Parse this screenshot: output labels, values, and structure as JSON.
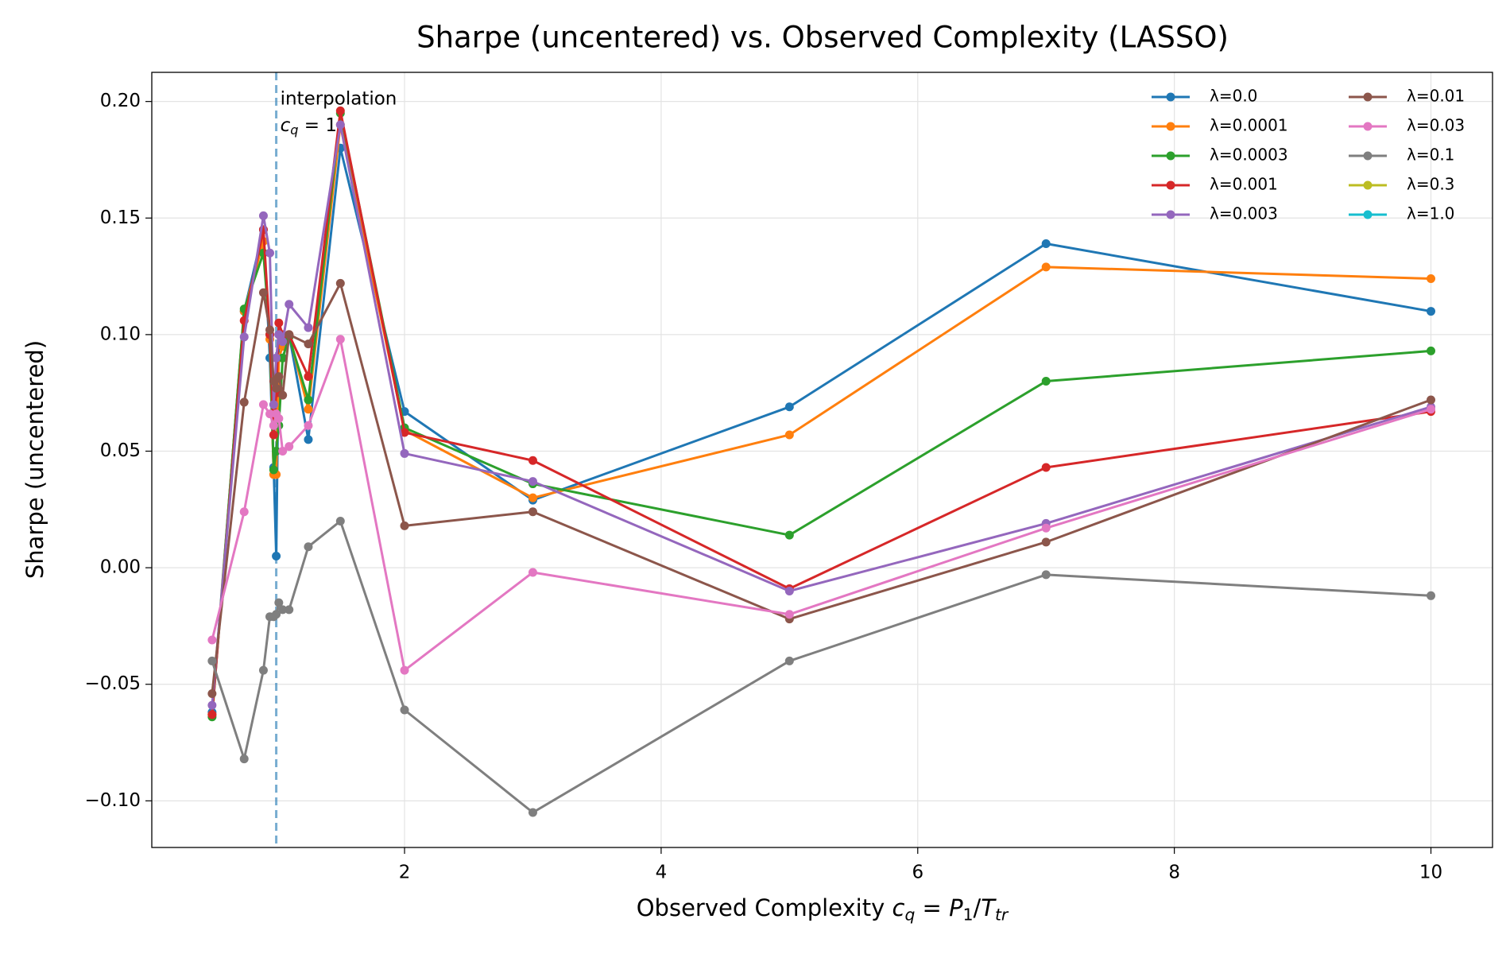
{
  "chart_data": {
    "type": "line",
    "title": "Sharpe (uncentered) vs. Observed Complexity (LASSO)",
    "y_label": "Sharpe (uncentered)",
    "x_label": [
      {
        "text": "Observed Complexity  "
      },
      {
        "text": "c",
        "italic": true
      },
      {
        "text": "q",
        "italic": true,
        "sub": true
      },
      {
        "text": " = "
      },
      {
        "text": "P",
        "italic": true
      },
      {
        "text": "1",
        "sub": true
      },
      {
        "text": "/"
      },
      {
        "text": "T",
        "italic": true
      },
      {
        "text": "tr",
        "italic": true,
        "sub": true
      }
    ],
    "vline": {
      "x": 1,
      "color": "#1f77b4",
      "label": "interpolation",
      "math": [
        {
          "text": "c",
          "italic": true
        },
        {
          "text": "q",
          "italic": true,
          "sub": true
        },
        {
          "text": " = 1"
        }
      ]
    },
    "x": [
      0.5,
      0.75,
      0.9,
      0.95,
      0.98,
      1.0,
      1.02,
      1.05,
      1.1,
      1.25,
      1.5,
      2,
      3,
      5,
      7,
      10
    ],
    "series": [
      {
        "name": "λ=0.0",
        "color": "#1f77b4",
        "values": [
          -0.062,
          0.11,
          0.145,
          0.09,
          0.043,
          0.005,
          0.1,
          0.095,
          0.1,
          0.055,
          0.18,
          0.067,
          0.029,
          0.069,
          0.139,
          0.11
        ]
      },
      {
        "name": "λ=0.0001",
        "color": "#ff7f0e",
        "values": [
          -0.063,
          0.11,
          0.14,
          0.098,
          0.04,
          0.04,
          0.09,
          0.095,
          0.1,
          0.068,
          0.19,
          0.059,
          0.03,
          0.057,
          0.129,
          0.124
        ]
      },
      {
        "name": "λ=0.0003",
        "color": "#2ca02c",
        "values": [
          -0.064,
          0.111,
          0.135,
          0.1,
          0.042,
          0.05,
          0.061,
          0.09,
          0.099,
          0.072,
          0.195,
          0.06,
          0.036,
          0.014,
          0.08,
          0.093
        ]
      },
      {
        "name": "λ=0.001",
        "color": "#d62728",
        "values": [
          -0.063,
          0.106,
          0.145,
          0.1,
          0.057,
          0.075,
          0.105,
          0.1,
          0.1,
          0.082,
          0.196,
          0.058,
          0.046,
          -0.009,
          0.043,
          0.067
        ]
      },
      {
        "name": "λ=0.003",
        "color": "#9467bd",
        "values": [
          -0.059,
          0.099,
          0.151,
          0.135,
          0.07,
          0.09,
          0.1,
          0.097,
          0.113,
          0.103,
          0.19,
          0.049,
          0.037,
          -0.01,
          0.019,
          0.069
        ]
      },
      {
        "name": "λ=0.01",
        "color": "#8c564b",
        "values": [
          -0.054,
          0.071,
          0.118,
          0.102,
          0.08,
          0.077,
          0.082,
          0.074,
          0.1,
          0.096,
          0.122,
          0.018,
          0.024,
          -0.022,
          0.011,
          0.072
        ]
      },
      {
        "name": "λ=0.03",
        "color": "#e377c2",
        "values": [
          -0.031,
          0.024,
          0.07,
          0.066,
          0.061,
          0.066,
          0.064,
          0.05,
          0.052,
          0.061,
          0.098,
          -0.044,
          -0.002,
          -0.02,
          0.017,
          0.068
        ]
      },
      {
        "name": "λ=0.1",
        "color": "#7f7f7f",
        "values": [
          -0.04,
          -0.082,
          -0.044,
          -0.021,
          -0.021,
          -0.02,
          -0.015,
          -0.018,
          -0.018,
          0.009,
          0.02,
          -0.061,
          -0.105,
          -0.04,
          -0.003,
          -0.012
        ]
      },
      {
        "name": "λ=0.3",
        "color": "#bcbd22",
        "values": [
          null,
          null,
          null,
          null,
          null,
          null,
          null,
          null,
          null,
          null,
          null,
          null,
          null,
          null,
          null,
          null
        ]
      },
      {
        "name": "λ=1.0",
        "color": "#17becf",
        "values": [
          null,
          null,
          null,
          null,
          null,
          null,
          null,
          null,
          null,
          null,
          null,
          null,
          null,
          null,
          null,
          null
        ]
      }
    ],
    "xlim": [
      0.03,
      10.48
    ],
    "ylim": [
      -0.12,
      0.2125
    ],
    "xticks": [
      2,
      4,
      6,
      8,
      10
    ],
    "yticks": [
      {
        "value": -0.1,
        "label": "−0.10"
      },
      {
        "value": -0.05,
        "label": "−0.05"
      },
      {
        "value": 0,
        "label": "0.00"
      },
      {
        "value": 0.05,
        "label": "0.05"
      },
      {
        "value": 0.1,
        "label": "0.10"
      },
      {
        "value": 0.15,
        "label": "0.15"
      },
      {
        "value": 0.2,
        "label": "0.20"
      }
    ],
    "grid": true,
    "legend": "upper right",
    "legend_columns": 2
  }
}
